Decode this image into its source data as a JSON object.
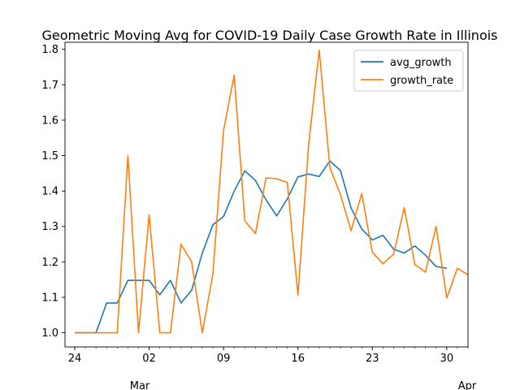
{
  "chart_data": {
    "type": "line",
    "title": "Geometric Moving Avg for COVID-19 Daily Case Growth Rate in Illinois",
    "xlabel": "",
    "ylabel": "",
    "x_start": "2020-02-24",
    "x_end": "2020-04-01",
    "x_ticks": [
      {
        "date": "2020-02-24",
        "label": "24"
      },
      {
        "date": "2020-03-02",
        "label": "02"
      },
      {
        "date": "2020-03-09",
        "label": "09"
      },
      {
        "date": "2020-03-16",
        "label": "16"
      },
      {
        "date": "2020-03-23",
        "label": "23"
      },
      {
        "date": "2020-03-30",
        "label": "30"
      }
    ],
    "x_month_labels": [
      {
        "date": "2020-03-01",
        "label": "Mar"
      },
      {
        "date": "2020-04-01",
        "label": "Apr"
      }
    ],
    "ylim": [
      0.96,
      1.82
    ],
    "y_ticks": [
      "1.0",
      "1.1",
      "1.2",
      "1.3",
      "1.4",
      "1.5",
      "1.6",
      "1.7",
      "1.8"
    ],
    "grid": false,
    "legend_position": "top-right",
    "series": [
      {
        "name": "avg_growth",
        "color": "#1f77b4",
        "points": [
          [
            "2020-02-24",
            1.0
          ],
          [
            "2020-02-25",
            1.0
          ],
          [
            "2020-02-26",
            1.0
          ],
          [
            "2020-02-27",
            1.084
          ],
          [
            "2020-02-28",
            1.084
          ],
          [
            "2020-02-29",
            1.148
          ],
          [
            "2020-03-01",
            1.148
          ],
          [
            "2020-03-02",
            1.148
          ],
          [
            "2020-03-03",
            1.107
          ],
          [
            "2020-03-04",
            1.148
          ],
          [
            "2020-03-05",
            1.084
          ],
          [
            "2020-03-06",
            1.12
          ],
          [
            "2020-03-07",
            1.225
          ],
          [
            "2020-03-08",
            1.305
          ],
          [
            "2020-03-09",
            1.328
          ],
          [
            "2020-03-10",
            1.4
          ],
          [
            "2020-03-11",
            1.457
          ],
          [
            "2020-03-12",
            1.43
          ],
          [
            "2020-03-13",
            1.375
          ],
          [
            "2020-03-14",
            1.33
          ],
          [
            "2020-03-15",
            1.378
          ],
          [
            "2020-03-16",
            1.44
          ],
          [
            "2020-03-17",
            1.448
          ],
          [
            "2020-03-18",
            1.441
          ],
          [
            "2020-03-19",
            1.485
          ],
          [
            "2020-03-20",
            1.458
          ],
          [
            "2020-03-21",
            1.352
          ],
          [
            "2020-03-22",
            1.293
          ],
          [
            "2020-03-23",
            1.262
          ],
          [
            "2020-03-24",
            1.275
          ],
          [
            "2020-03-25",
            1.236
          ],
          [
            "2020-03-26",
            1.225
          ],
          [
            "2020-03-27",
            1.245
          ],
          [
            "2020-03-28",
            1.219
          ],
          [
            "2020-03-29",
            1.187
          ],
          [
            "2020-03-30",
            1.182
          ]
        ]
      },
      {
        "name": "growth_rate",
        "color": "#ff7f0e",
        "points": [
          [
            "2020-02-24",
            1.0
          ],
          [
            "2020-02-25",
            1.0
          ],
          [
            "2020-02-26",
            1.0
          ],
          [
            "2020-02-27",
            1.0
          ],
          [
            "2020-02-28",
            1.0
          ],
          [
            "2020-02-29",
            1.5
          ],
          [
            "2020-03-01",
            1.0
          ],
          [
            "2020-03-02",
            1.333
          ],
          [
            "2020-03-03",
            1.0
          ],
          [
            "2020-03-04",
            1.0
          ],
          [
            "2020-03-05",
            1.25
          ],
          [
            "2020-03-06",
            1.2
          ],
          [
            "2020-03-07",
            1.0
          ],
          [
            "2020-03-08",
            1.167
          ],
          [
            "2020-03-09",
            1.571
          ],
          [
            "2020-03-10",
            1.727
          ],
          [
            "2020-03-11",
            1.316
          ],
          [
            "2020-03-12",
            1.28
          ],
          [
            "2020-03-13",
            1.437
          ],
          [
            "2020-03-14",
            1.435
          ],
          [
            "2020-03-15",
            1.424
          ],
          [
            "2020-03-16",
            1.106
          ],
          [
            "2020-03-17",
            1.529
          ],
          [
            "2020-03-18",
            1.798
          ],
          [
            "2020-03-19",
            1.467
          ],
          [
            "2020-03-20",
            1.39
          ],
          [
            "2020-03-21",
            1.288
          ],
          [
            "2020-03-22",
            1.393
          ],
          [
            "2020-03-23",
            1.227
          ],
          [
            "2020-03-24",
            1.195
          ],
          [
            "2020-03-25",
            1.222
          ],
          [
            "2020-03-26",
            1.353
          ],
          [
            "2020-03-27",
            1.193
          ],
          [
            "2020-03-28",
            1.171
          ],
          [
            "2020-03-29",
            1.3
          ],
          [
            "2020-03-30",
            1.098
          ],
          [
            "2020-03-31",
            1.182
          ],
          [
            "2020-04-01",
            1.164
          ]
        ]
      }
    ]
  }
}
